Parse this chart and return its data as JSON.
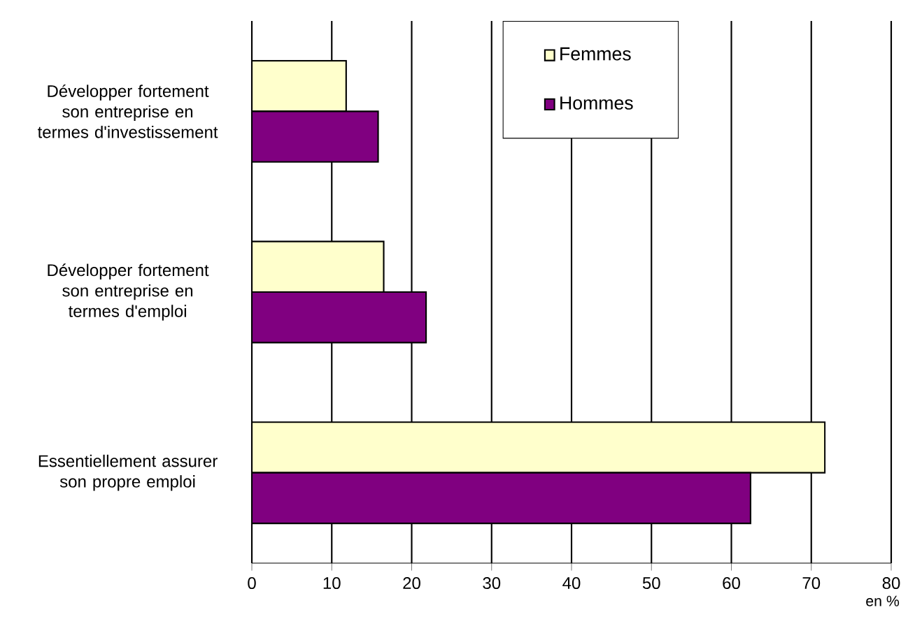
{
  "chart_data": {
    "type": "bar",
    "orientation": "horizontal",
    "xlabel": "en %",
    "categories": [
      "Développer fortement son entreprise en termes d'investissement",
      "Développer fortement son entreprise en termes d'emploi",
      "Essentiellement assurer son propre emploi"
    ],
    "series": [
      {
        "name": "Femmes",
        "color": "#ffffcc",
        "values": [
          11.8,
          16.5,
          71.7
        ]
      },
      {
        "name": "Hommes",
        "color": "#800080",
        "values": [
          15.8,
          21.8,
          62.4
        ]
      }
    ],
    "xlim": [
      0,
      80
    ],
    "xticks": [
      0,
      10,
      20,
      30,
      40,
      50,
      60,
      70,
      80
    ],
    "grid": "x",
    "legend": "top"
  }
}
